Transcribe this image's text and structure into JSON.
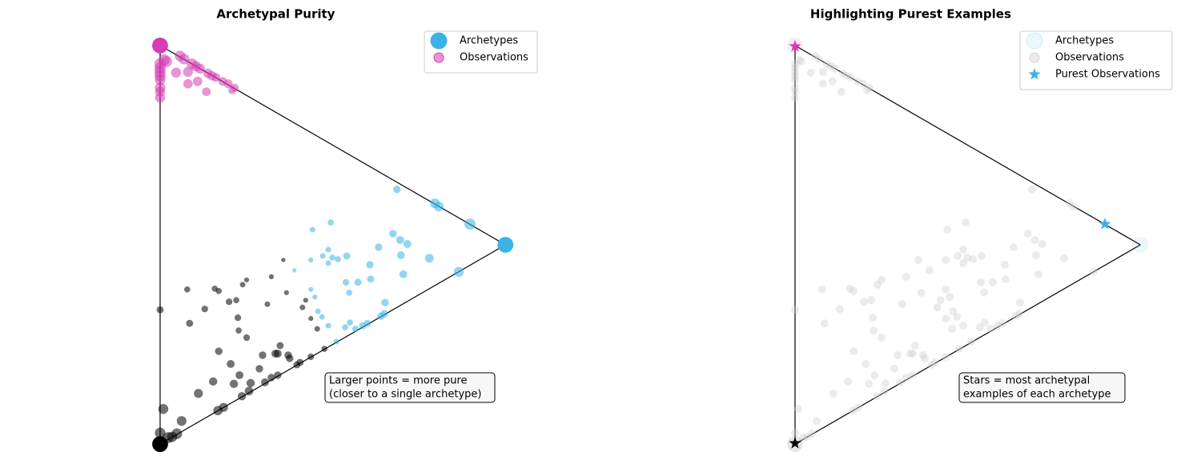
{
  "chart_data": [
    {
      "type": "scatter",
      "title": "Archetypal Purity",
      "xlim": [
        -0.32,
        0.9
      ],
      "ylim": [
        -0.05,
        1.05
      ],
      "edges": true,
      "legend": "upper right",
      "annotation": [
        "Larger points = more pure",
        "(closer to a single archetype)"
      ],
      "archetypes": {
        "name": "Archetypes",
        "color": "#3bb3e6",
        "alpha": 1,
        "size": 200,
        "x": [
          0,
          0.866,
          0
        ],
        "y": [
          1,
          0.5,
          0
        ],
        "colors": [
          "#d63cb5",
          "#3bb3e6",
          "#000000"
        ]
      },
      "observations": {
        "name": "Observations",
        "color": "#d63cb5",
        "alpha": 0.55,
        "groups": [
          {
            "color": "#d63cb5",
            "x": [
              0,
              0,
              0,
              0,
              0,
              0,
              0,
              0,
              0.01,
              0.016,
              0.04,
              0.05,
              0.06,
              0.07,
              0.07,
              0.08,
              0.09,
              0.094,
              0.1,
              0.116,
              0.12,
              0.13,
              0.14,
              0.157,
              0.171,
              0.181,
              0.187
            ],
            "y": [
              0.954,
              0.944,
              0.934,
              0.924,
              0.914,
              0.894,
              0.884,
              0.869,
              0.964,
              0.96,
              0.932,
              0.974,
              0.966,
              0.934,
              0.904,
              0.954,
              0.948,
              0.91,
              0.942,
              0.884,
              0.93,
              0.924,
              0.92,
              0.91,
              0.904,
              0.888,
              0.894
            ],
            "sizes": [
              100,
              100,
              100,
              100,
              90,
              90,
              80,
              80,
              100,
              100,
              80,
              90,
              90,
              80,
              70,
              90,
              80,
              70,
              80,
              60,
              70,
              70,
              60,
              60,
              60,
              50,
              50
            ]
          },
          {
            "color": "#3bb3e6",
            "x": [
              0.594,
              0.689,
              0.699,
              0.777,
              0.428,
              0.382,
              0.584,
              0.602,
              0.62,
              0.548,
              0.422,
              0.408,
              0.432,
              0.446,
              0.468,
              0.526,
              0.675,
              0.604,
              0.337,
              0.749,
              0.61,
              0.466,
              0.496,
              0.528,
              0.422,
              0.378,
              0.378,
              0.474,
              0.388,
              0.564,
              0.396,
              0.406,
              0.562,
              0.554,
              0.52,
              0.508,
              0.49,
              0.476,
              0.464,
              0.422,
              0.442
            ],
            "y": [
              0.639,
              0.604,
              0.596,
              0.552,
              0.556,
              0.538,
              0.528,
              0.512,
              0.502,
              0.494,
              0.488,
              0.472,
              0.468,
              0.464,
              0.472,
              0.45,
              0.466,
              0.474,
              0.436,
              0.432,
              0.426,
              0.406,
              0.406,
              0.414,
              0.454,
              0.462,
              0.388,
              0.38,
              0.369,
              0.355,
              0.333,
              0.319,
              0.327,
              0.321,
              0.303,
              0.297,
              0.289,
              0.305,
              0.293,
              0.297,
              0.257
            ],
            "sizes": [
              45,
              75,
              75,
              100,
              30,
              25,
              45,
              50,
              50,
              45,
              25,
              25,
              30,
              30,
              40,
              45,
              60,
              50,
              15,
              80,
              50,
              35,
              40,
              40,
              25,
              20,
              20,
              30,
              20,
              45,
              25,
              25,
              45,
              45,
              40,
              40,
              35,
              30,
              30,
              25,
              25
            ]
          },
          {
            "color": "#000000",
            "x": [
              0.068,
              0.137,
              0.147,
              0.207,
              0.217,
              0.279,
              0.309,
              0.317,
              0,
              0.112,
              0.173,
              0.191,
              0.269,
              0.357,
              0.365,
              0.074,
              0.195,
              0.197,
              0.217,
              0.378,
              0.394,
              0.147,
              0.177,
              0.257,
              0.289,
              0.295,
              0.301,
              0.321,
              0.325,
              0.378,
              0.412,
              0.351,
              0.343,
              0.249,
              0.199,
              0.295,
              0.279,
              0.263,
              0.133,
              0.185,
              0.227,
              0.223,
              0.205,
              0.096,
              0.159,
              0.145,
              0.008,
              0.054,
              0,
              0.03,
              0.042,
              0.02
            ],
            "y": [
              0.388,
              0.39,
              0.384,
              0.4,
              0.412,
              0.42,
              0.462,
              0.38,
              0.337,
              0.339,
              0.357,
              0.361,
              0.351,
              0.343,
              0.361,
              0.303,
              0.317,
              0.285,
              0.267,
              0.315,
              0.289,
              0.233,
              0.201,
              0.223,
              0.227,
              0.227,
              0.247,
              0.223,
              0.215,
              0.219,
              0.239,
              0.205,
              0.199,
              0.189,
              0.173,
              0.173,
              0.167,
              0.155,
              0.157,
              0.151,
              0.153,
              0.133,
              0.12,
              0.127,
              0.092,
              0.084,
              0.088,
              0.058,
              0.028,
              0.018,
              0.026,
              0.016
            ],
            "sizes": [
              30,
              30,
              30,
              25,
              20,
              20,
              15,
              20,
              40,
              35,
              35,
              30,
              25,
              25,
              20,
              40,
              35,
              30,
              35,
              20,
              25,
              45,
              50,
              45,
              50,
              50,
              40,
              45,
              45,
              35,
              30,
              40,
              40,
              45,
              50,
              45,
              45,
              50,
              55,
              55,
              55,
              60,
              55,
              65,
              65,
              70,
              80,
              75,
              90,
              85,
              90,
              95
            ]
          }
        ]
      }
    },
    {
      "type": "scatter",
      "title": "Highlighting Purest Examples",
      "xlim": [
        -0.32,
        0.9
      ],
      "ylim": [
        -0.05,
        1.05
      ],
      "edges": true,
      "legend": "upper right",
      "annotation": [
        "Stars = most archetypal",
        "examples of each archetype"
      ],
      "archetypes": {
        "name": "Archetypes",
        "color": "#3bb3e6",
        "alpha": 0.1,
        "size": 200,
        "x": [
          0,
          0.866,
          0
        ],
        "y": [
          1,
          0.5,
          0
        ],
        "colors": [
          "#d63cb5",
          "#3bb3e6",
          "#000000"
        ]
      },
      "observations": {
        "name": "Observations",
        "color": "#cccccc",
        "alpha": 0.4,
        "size": 50
      },
      "purest": {
        "name": "Purest Observations",
        "color": "#3bb3e6",
        "x": [
          0,
          0.777,
          0
        ],
        "y": [
          0.998,
          0.552,
          0.002
        ],
        "colors": [
          "#d63cb5",
          "#3bb3e6",
          "#000000"
        ]
      }
    }
  ]
}
